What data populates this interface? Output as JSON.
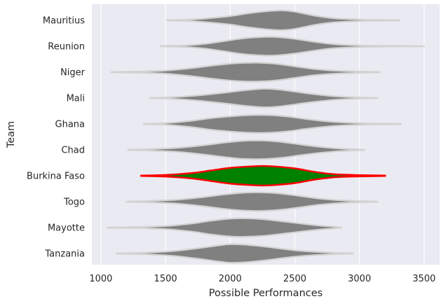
{
  "chart_data": {
    "type": "violin",
    "orientation": "horizontal",
    "title": "",
    "xlabel": "Possible Performances",
    "ylabel": "Team",
    "xlim": [
      930,
      3620
    ],
    "x_ticks": [
      1000,
      1500,
      2000,
      2500,
      3000,
      3500
    ],
    "grid": true,
    "highlight_team": "Burkina Faso",
    "colors": {
      "background": "#eaeaf2",
      "grid": "#ffffff",
      "body": "#808080",
      "outline": "#d3d3d3",
      "highlight_fill": "#008000",
      "highlight_outline": "#ff0000"
    },
    "categories": [
      "Mauritius",
      "Reunion",
      "Niger",
      "Mali",
      "Ghana",
      "Chad",
      "Burkina Faso",
      "Togo",
      "Mayotte",
      "Tanzania"
    ],
    "series": [
      {
        "team": "Mauritius",
        "min": 1510,
        "max": 3310,
        "shape": [
          [
            1510,
            0.02
          ],
          [
            1700,
            0.08
          ],
          [
            1850,
            0.22
          ],
          [
            2000,
            0.4
          ],
          [
            2150,
            0.68
          ],
          [
            2300,
            0.88
          ],
          [
            2400,
            0.94
          ],
          [
            2500,
            0.82
          ],
          [
            2650,
            0.45
          ],
          [
            2800,
            0.2
          ],
          [
            3000,
            0.08
          ],
          [
            3310,
            0.02
          ]
        ]
      },
      {
        "team": "Reunion",
        "min": 1460,
        "max": 3500,
        "shape": [
          [
            1460,
            0.02
          ],
          [
            1650,
            0.08
          ],
          [
            1800,
            0.22
          ],
          [
            1950,
            0.48
          ],
          [
            2100,
            0.75
          ],
          [
            2250,
            0.88
          ],
          [
            2350,
            0.88
          ],
          [
            2500,
            0.7
          ],
          [
            2650,
            0.42
          ],
          [
            2800,
            0.2
          ],
          [
            3000,
            0.08
          ],
          [
            3300,
            0.03
          ],
          [
            3500,
            0.01
          ]
        ]
      },
      {
        "team": "Niger",
        "min": 1080,
        "max": 3160,
        "shape": [
          [
            1080,
            0.02
          ],
          [
            1300,
            0.06
          ],
          [
            1500,
            0.15
          ],
          [
            1700,
            0.38
          ],
          [
            1900,
            0.68
          ],
          [
            2050,
            0.85
          ],
          [
            2200,
            0.9
          ],
          [
            2350,
            0.8
          ],
          [
            2500,
            0.55
          ],
          [
            2650,
            0.3
          ],
          [
            2850,
            0.12
          ],
          [
            3160,
            0.02
          ]
        ]
      },
      {
        "team": "Mali",
        "min": 1380,
        "max": 3140,
        "shape": [
          [
            1380,
            0.02
          ],
          [
            1550,
            0.08
          ],
          [
            1750,
            0.25
          ],
          [
            1950,
            0.5
          ],
          [
            2100,
            0.72
          ],
          [
            2250,
            0.88
          ],
          [
            2350,
            0.84
          ],
          [
            2450,
            0.7
          ],
          [
            2600,
            0.44
          ],
          [
            2800,
            0.18
          ],
          [
            2950,
            0.08
          ],
          [
            3140,
            0.02
          ]
        ]
      },
      {
        "team": "Ghana",
        "min": 1330,
        "max": 3320,
        "shape": [
          [
            1330,
            0.02
          ],
          [
            1500,
            0.08
          ],
          [
            1700,
            0.3
          ],
          [
            1850,
            0.55
          ],
          [
            2000,
            0.72
          ],
          [
            2150,
            0.84
          ],
          [
            2300,
            0.84
          ],
          [
            2450,
            0.7
          ],
          [
            2600,
            0.45
          ],
          [
            2800,
            0.2
          ],
          [
            3000,
            0.08
          ],
          [
            3320,
            0.02
          ]
        ]
      },
      {
        "team": "Chad",
        "min": 1210,
        "max": 3040,
        "shape": [
          [
            1210,
            0.02
          ],
          [
            1400,
            0.08
          ],
          [
            1600,
            0.2
          ],
          [
            1800,
            0.45
          ],
          [
            1950,
            0.68
          ],
          [
            2100,
            0.86
          ],
          [
            2250,
            0.88
          ],
          [
            2400,
            0.75
          ],
          [
            2550,
            0.5
          ],
          [
            2700,
            0.28
          ],
          [
            2850,
            0.12
          ],
          [
            3040,
            0.02
          ]
        ]
      },
      {
        "team": "Burkina Faso",
        "min": 1310,
        "max": 3200,
        "shape": [
          [
            1310,
            0.02
          ],
          [
            1500,
            0.08
          ],
          [
            1700,
            0.25
          ],
          [
            1850,
            0.5
          ],
          [
            2000,
            0.75
          ],
          [
            2150,
            0.88
          ],
          [
            2250,
            0.93
          ],
          [
            2350,
            0.88
          ],
          [
            2500,
            0.7
          ],
          [
            2650,
            0.38
          ],
          [
            2800,
            0.15
          ],
          [
            3000,
            0.06
          ],
          [
            3200,
            0.02
          ]
        ]
      },
      {
        "team": "Togo",
        "min": 1200,
        "max": 3140,
        "shape": [
          [
            1200,
            0.02
          ],
          [
            1400,
            0.08
          ],
          [
            1600,
            0.2
          ],
          [
            1800,
            0.45
          ],
          [
            1950,
            0.68
          ],
          [
            2100,
            0.85
          ],
          [
            2250,
            0.88
          ],
          [
            2400,
            0.76
          ],
          [
            2550,
            0.52
          ],
          [
            2700,
            0.28
          ],
          [
            2900,
            0.1
          ],
          [
            3140,
            0.02
          ]
        ]
      },
      {
        "team": "Mayotte",
        "min": 1050,
        "max": 2860,
        "shape": [
          [
            1050,
            0.02
          ],
          [
            1300,
            0.06
          ],
          [
            1500,
            0.15
          ],
          [
            1700,
            0.38
          ],
          [
            1850,
            0.65
          ],
          [
            2000,
            0.85
          ],
          [
            2100,
            0.88
          ],
          [
            2250,
            0.8
          ],
          [
            2400,
            0.6
          ],
          [
            2550,
            0.38
          ],
          [
            2700,
            0.18
          ],
          [
            2860,
            0.03
          ]
        ]
      },
      {
        "team": "Tanzania",
        "min": 1120,
        "max": 2950,
        "shape": [
          [
            1120,
            0.02
          ],
          [
            1350,
            0.08
          ],
          [
            1550,
            0.22
          ],
          [
            1750,
            0.5
          ],
          [
            1900,
            0.75
          ],
          [
            2000,
            0.88
          ],
          [
            2100,
            0.85
          ],
          [
            2250,
            0.68
          ],
          [
            2400,
            0.45
          ],
          [
            2550,
            0.25
          ],
          [
            2750,
            0.1
          ],
          [
            2950,
            0.02
          ]
        ]
      }
    ]
  }
}
